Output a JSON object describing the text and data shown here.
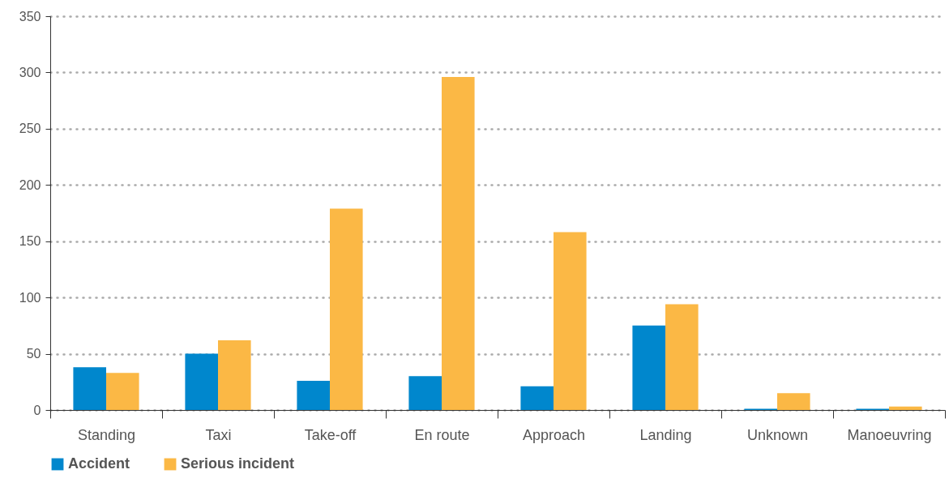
{
  "chart_data": {
    "type": "bar",
    "categories": [
      "Standing",
      "Taxi",
      "Take-off",
      "En route",
      "Approach",
      "Landing",
      "Unknown",
      "Manoeuvring"
    ],
    "series": [
      {
        "name": "Accident",
        "color": "#0087cd",
        "values": [
          38,
          50,
          26,
          30,
          21,
          75,
          1,
          1
        ]
      },
      {
        "name": "Serious incident",
        "color": "#fbb845",
        "values": [
          33,
          62,
          179,
          296,
          158,
          94,
          15,
          3
        ]
      }
    ],
    "ylim": [
      0,
      350
    ],
    "yticks": [
      0,
      50,
      100,
      150,
      200,
      250,
      300,
      350
    ],
    "grid": "y",
    "legend": "bottom"
  }
}
